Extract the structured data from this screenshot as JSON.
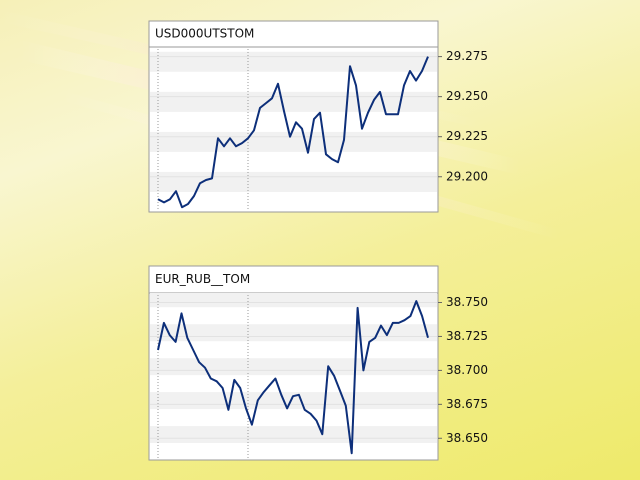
{
  "chart_data": [
    {
      "type": "line",
      "title": "USD000UTSTOM",
      "color": "#0d2f7a",
      "grid": true,
      "yaxis_side": "right",
      "ylim": [
        29.178,
        29.281
      ],
      "yticks": [
        29.275,
        {
          "value": 29.25,
          "label": "29.250"
        },
        29.225,
        {
          "value": 29.2,
          "label": "29.200"
        }
      ],
      "values": [
        29.186,
        29.184,
        29.186,
        29.191,
        29.181,
        29.183,
        29.188,
        29.196,
        29.198,
        29.199,
        29.224,
        29.219,
        29.224,
        29.219,
        29.221,
        29.224,
        29.229,
        29.243,
        29.246,
        29.249,
        29.258,
        29.241,
        29.225,
        29.234,
        29.23,
        29.215,
        29.236,
        29.24,
        29.214,
        29.211,
        29.209,
        29.223,
        29.269,
        29.257,
        29.23,
        29.24,
        29.248,
        29.253,
        29.239,
        29.239,
        29.239,
        29.257,
        29.266,
        29.26,
        29.266,
        29.275
      ]
    },
    {
      "type": "line",
      "title": "EUR_RUB__TOM",
      "color": "#0d2f7a",
      "grid": true,
      "yaxis_side": "right",
      "ylim": [
        38.634,
        38.757
      ],
      "yticks": [
        {
          "value": 38.75,
          "label": "38.750"
        },
        38.725,
        {
          "value": 38.7,
          "label": "38.700"
        },
        38.675,
        {
          "value": 38.65,
          "label": "38.650"
        }
      ],
      "values": [
        38.715,
        38.735,
        38.726,
        38.721,
        38.742,
        38.724,
        38.715,
        38.706,
        38.702,
        38.694,
        38.692,
        38.687,
        38.671,
        38.693,
        38.687,
        38.672,
        38.66,
        38.678,
        38.684,
        38.689,
        38.694,
        38.682,
        38.672,
        38.681,
        38.682,
        38.671,
        38.668,
        38.663,
        38.653,
        38.703,
        38.696,
        38.685,
        38.674,
        38.639,
        38.746,
        38.7,
        38.721,
        38.724,
        38.733,
        38.726,
        38.735,
        38.735,
        38.737,
        38.74,
        38.751,
        38.74,
        38.724
      ]
    }
  ]
}
